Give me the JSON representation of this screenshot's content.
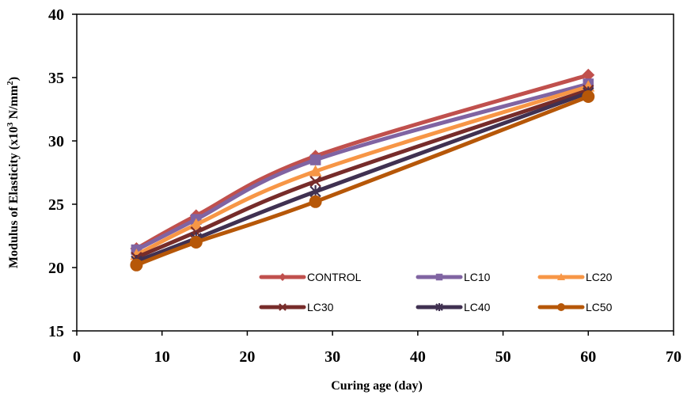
{
  "chart_data": {
    "type": "line",
    "xlabel": "Curing age (day)",
    "ylabel_main": "Modulus of Elasticity (x10",
    "ylabel_sup": "3",
    "ylabel_unit": " N/mm",
    "ylabel_sup2": "2",
    "ylabel_close": ")",
    "xlim": [
      0,
      70
    ],
    "ylim": [
      15,
      40
    ],
    "xticks": [
      "0",
      "10",
      "20",
      "30",
      "40",
      "50",
      "60",
      "70"
    ],
    "yticks": [
      "15",
      "20",
      "25",
      "30",
      "35",
      "40"
    ],
    "grid": false,
    "legend_placement": "inside-bottom-right",
    "series": [
      {
        "name": "CONTROL",
        "color": "#C0504D",
        "marker": "diamond",
        "x": [
          7,
          14,
          28,
          60
        ],
        "y": [
          21.5,
          24.1,
          28.8,
          35.2
        ]
      },
      {
        "name": "LC10",
        "color": "#8064A2",
        "marker": "square",
        "x": [
          7,
          14,
          28,
          60
        ],
        "y": [
          21.4,
          23.8,
          28.5,
          34.5
        ]
      },
      {
        "name": "LC20",
        "color": "#F79646",
        "marker": "triangle",
        "x": [
          7,
          14,
          28,
          60
        ],
        "y": [
          21.0,
          23.4,
          27.6,
          34.3
        ]
      },
      {
        "name": "LC30",
        "color": "#772C2A",
        "marker": "x",
        "x": [
          7,
          14,
          28,
          60
        ],
        "y": [
          20.8,
          22.8,
          26.8,
          34.0
        ]
      },
      {
        "name": "LC40",
        "color": "#403151",
        "marker": "star",
        "x": [
          7,
          14,
          28,
          60
        ],
        "y": [
          20.5,
          22.3,
          26.0,
          33.8
        ]
      },
      {
        "name": "LC50",
        "color": "#B65708",
        "marker": "circle",
        "x": [
          7,
          14,
          28,
          60
        ],
        "y": [
          20.2,
          22.0,
          25.2,
          33.5
        ]
      }
    ]
  }
}
